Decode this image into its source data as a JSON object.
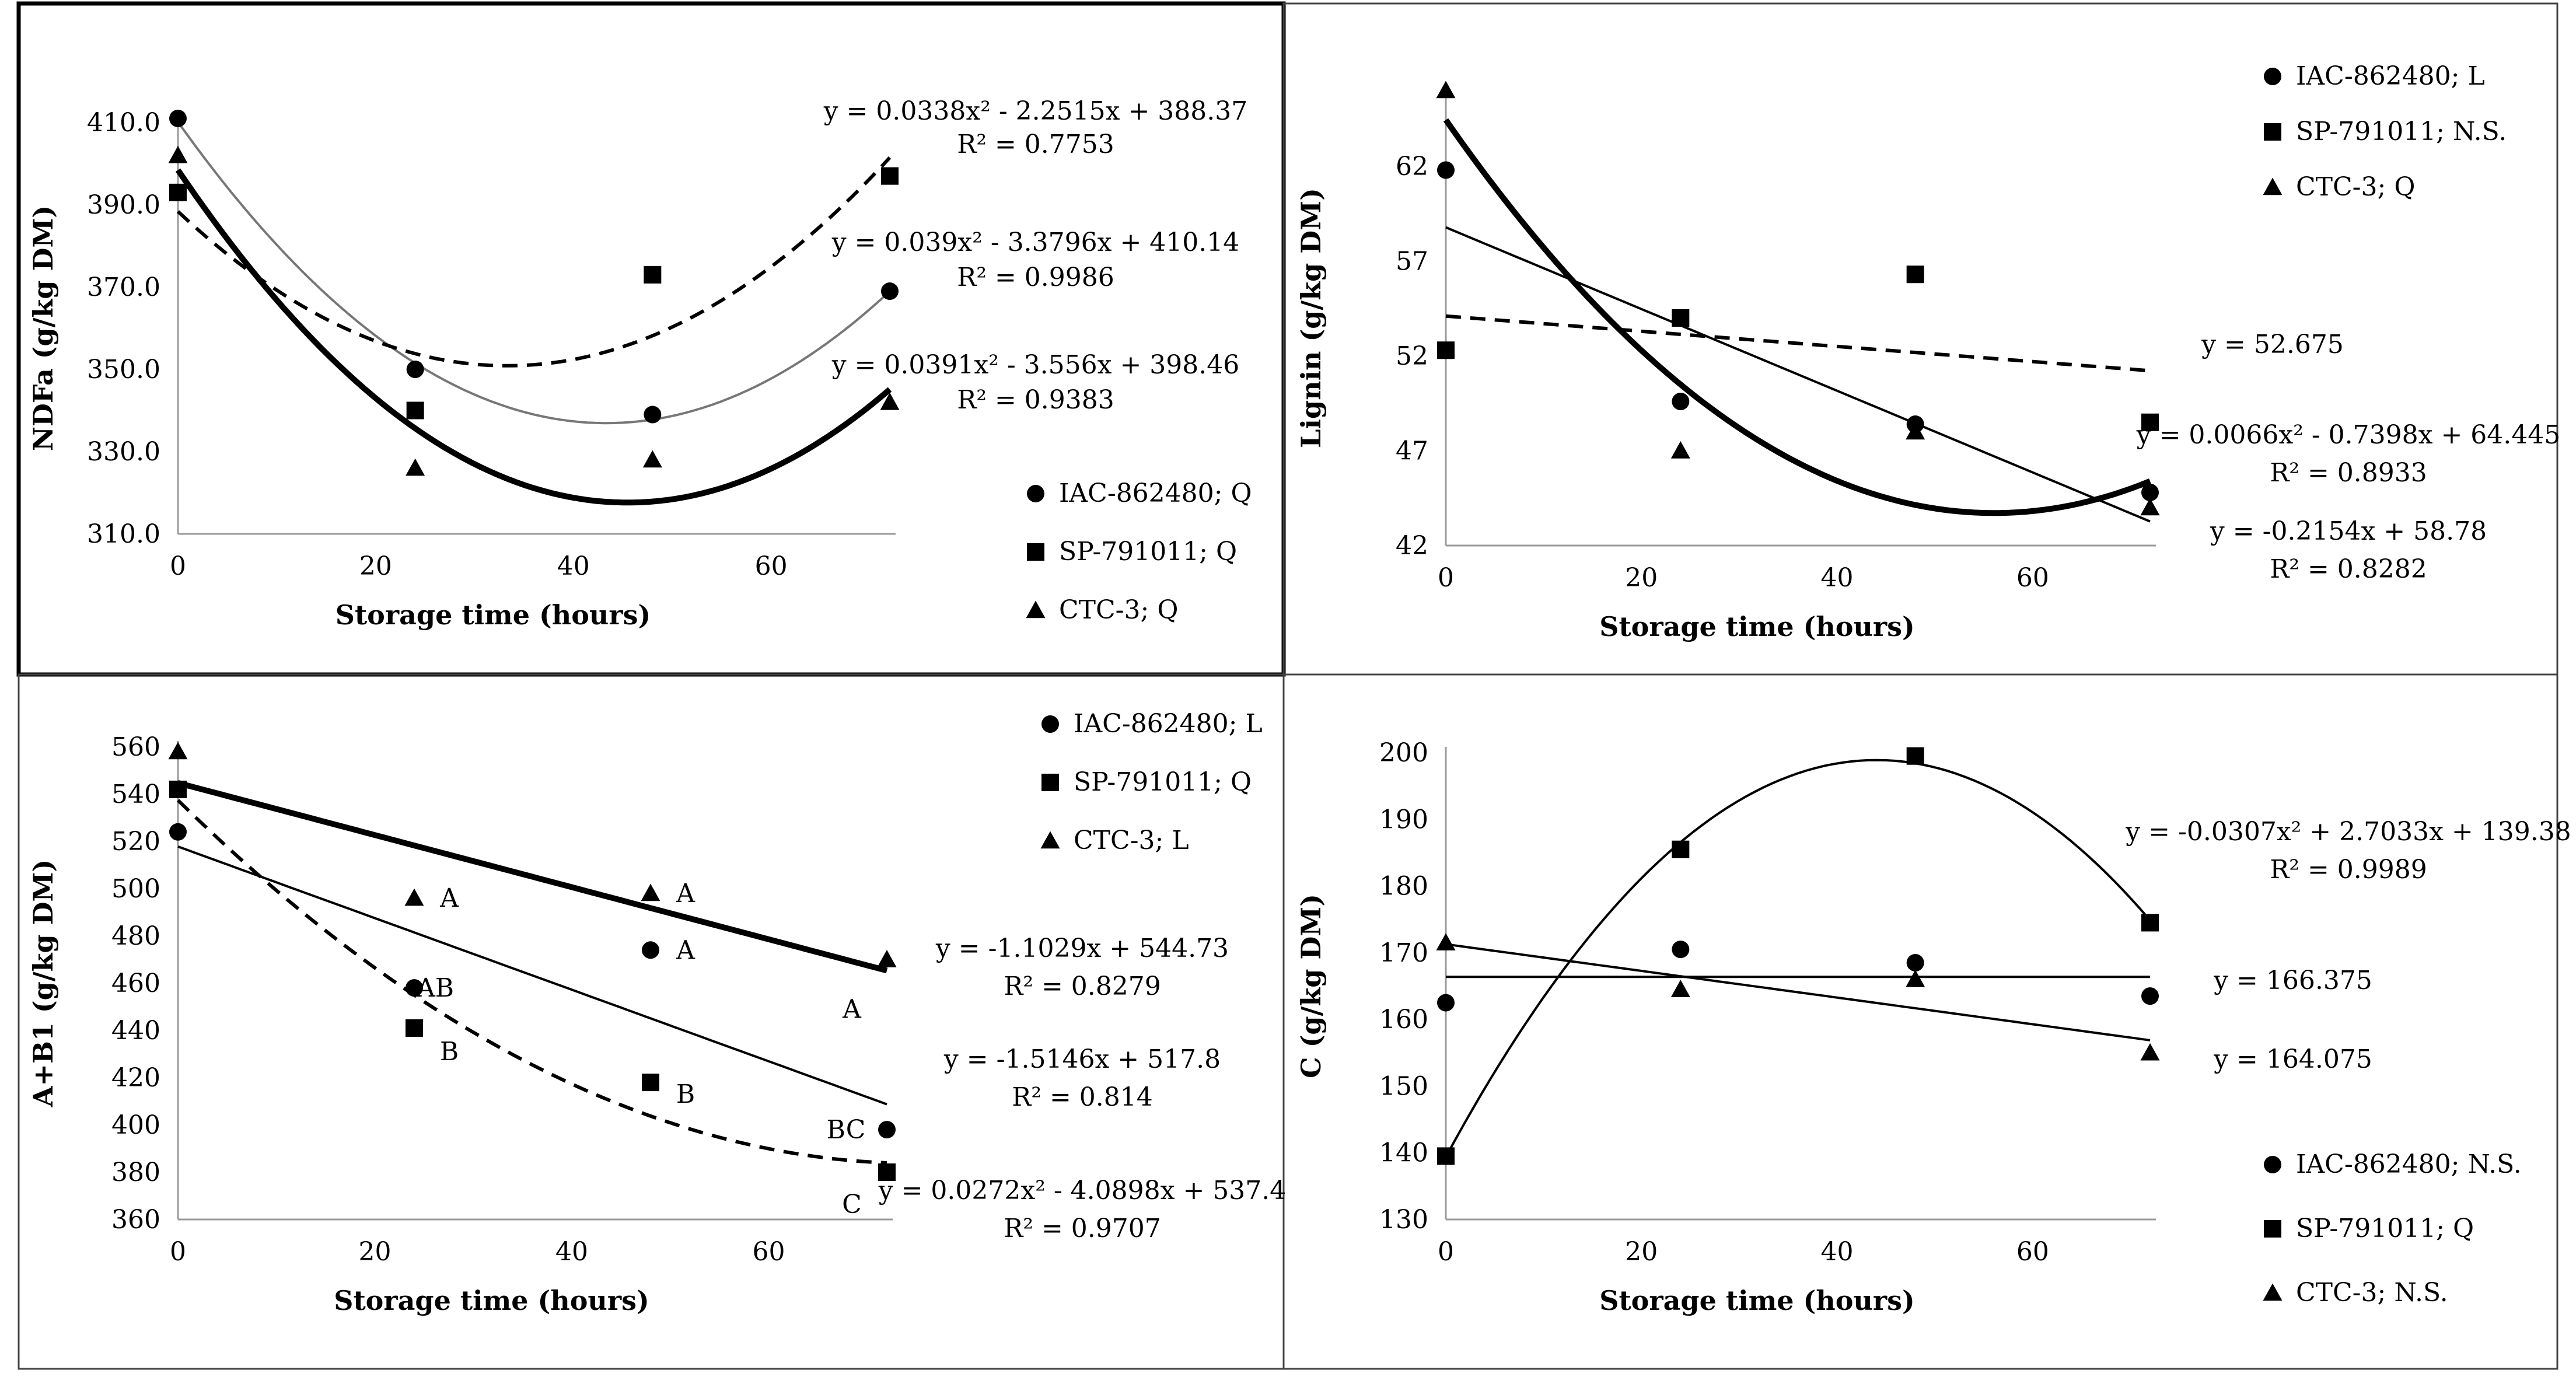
{
  "chart_data": [
    {
      "id": "ndfa",
      "type": "scatter",
      "xlabel": "Storage time (hours)",
      "ylabel": "NDFa (g/kg DM)",
      "xlim": [
        0,
        72
      ],
      "ylim": [
        310,
        410
      ],
      "xticks": [
        0,
        20,
        40,
        60
      ],
      "yticks": [
        310.0,
        330.0,
        350.0,
        370.0,
        390.0,
        410.0
      ],
      "ytick_labels": [
        "310.0",
        "330.0",
        "350.0",
        "370.0",
        "390.0",
        "410.0"
      ],
      "x": [
        0,
        24,
        48,
        72
      ],
      "series": [
        {
          "name": "IAC-862480; Q",
          "marker": "circle",
          "values": [
            411,
            350,
            339,
            369
          ],
          "fit": {
            "kind": "quad",
            "a": 0.039,
            "b": -3.3796,
            "c": 410.14,
            "style": "thin",
            "color": "#777777"
          }
        },
        {
          "name": "SP-791011; Q",
          "marker": "square",
          "values": [
            393,
            340,
            373,
            397
          ],
          "fit": {
            "kind": "quad",
            "a": 0.0338,
            "b": -2.2515,
            "c": 388.37,
            "style": "dashed",
            "color": "#000000"
          }
        },
        {
          "name": "CTC-3; Q",
          "marker": "triangle",
          "values": [
            402,
            326,
            328,
            342
          ],
          "fit": {
            "kind": "quad",
            "a": 0.0391,
            "b": -3.556,
            "c": 398.46,
            "style": "thick",
            "color": "#000000"
          }
        }
      ],
      "equations": [
        {
          "eq": "y = 0.0338x² - 2.2515x + 388.37",
          "r2": "R² = 0.7753"
        },
        {
          "eq": "y = 0.039x² - 3.3796x + 410.14",
          "r2": "R² = 0.9986"
        },
        {
          "eq": "y = 0.0391x² - 3.556x + 398.46",
          "r2": "R² = 0.9383"
        }
      ],
      "legend_position": "bottom-right"
    },
    {
      "id": "lignin",
      "type": "scatter",
      "xlabel": "Storage time (hours)",
      "ylabel": "Lignin (g/kg DM)",
      "xlim": [
        0,
        72
      ],
      "ylim": [
        42,
        66
      ],
      "xticks": [
        0,
        20,
        40,
        60
      ],
      "yticks": [
        42,
        47,
        52,
        57,
        62
      ],
      "ytick_labels": [
        "42",
        "47",
        "52",
        "57",
        "62"
      ],
      "x": [
        0,
        24,
        48,
        72
      ],
      "series": [
        {
          "name": "IAC-862480; L",
          "marker": "circle",
          "values": [
            61.8,
            49.6,
            48.4,
            44.8
          ],
          "fit": {
            "kind": "linear",
            "b": -0.2154,
            "c": 58.78,
            "style": "thin",
            "color": "#000000"
          }
        },
        {
          "name": "SP-791011; N.S.",
          "marker": "square",
          "values": [
            52.3,
            54.0,
            56.3,
            48.5
          ],
          "fit": {
            "kind": "linear",
            "b": -0.04,
            "c": 54.1,
            "style": "dashed",
            "color": "#000000"
          }
        },
        {
          "name": "CTC-3; Q",
          "marker": "triangle",
          "values": [
            66.0,
            47.0,
            48.0,
            44.0
          ],
          "fit": {
            "kind": "quad",
            "a": 0.0066,
            "b": -0.7398,
            "c": 64.445,
            "style": "thick",
            "color": "#000000"
          }
        }
      ],
      "equations": [
        {
          "eq": "y = 52.675",
          "r2": ""
        },
        {
          "eq": "y = 0.0066x² - 0.7398x + 64.445",
          "r2": "R² = 0.8933"
        },
        {
          "eq": "y = -0.2154x + 58.78",
          "r2": "R² = 0.8282"
        }
      ],
      "legend_position": "top-right"
    },
    {
      "id": "ab1",
      "type": "scatter",
      "xlabel": "Storage time (hours)",
      "ylabel": "A+B1 (g/kg DM)",
      "xlim": [
        0,
        72
      ],
      "ylim": [
        360,
        560
      ],
      "xticks": [
        0,
        20,
        40,
        60
      ],
      "yticks": [
        360,
        380,
        400,
        420,
        440,
        460,
        480,
        500,
        520,
        540,
        560
      ],
      "ytick_labels": [
        "360",
        "380",
        "400",
        "420",
        "440",
        "460",
        "480",
        "500",
        "520",
        "540",
        "560"
      ],
      "x": [
        0,
        24,
        48,
        72
      ],
      "series": [
        {
          "name": "IAC-862480; L",
          "marker": "circle",
          "values": [
            524,
            458,
            474,
            398
          ],
          "fit": {
            "kind": "linear",
            "b": -1.5146,
            "c": 517.8,
            "style": "thin",
            "color": "#000000"
          }
        },
        {
          "name": "SP-791011; Q",
          "marker": "square",
          "values": [
            542,
            441,
            418,
            380
          ],
          "fit": {
            "kind": "quad",
            "a": 0.0272,
            "b": -4.0898,
            "c": 537.4,
            "style": "dashed",
            "color": "#000000"
          }
        },
        {
          "name": "CTC-3; L",
          "marker": "triangle",
          "values": [
            558,
            496,
            498,
            470
          ],
          "fit": {
            "kind": "linear",
            "b": -1.1029,
            "c": 544.73,
            "style": "thick",
            "color": "#000000"
          }
        }
      ],
      "equations": [
        {
          "eq": "y = -1.1029x + 544.73",
          "r2": "R² = 0.8279"
        },
        {
          "eq": "y = -1.5146x + 517.8",
          "r2": "R² = 0.814"
        },
        {
          "eq": "y = 0.0272x² - 4.0898x + 537.4",
          "r2": "R² = 0.9707"
        }
      ],
      "annotations": [
        {
          "text": "A",
          "x": 24,
          "y": 496
        },
        {
          "text": "A",
          "x": 48,
          "y": 498
        },
        {
          "text": "AB",
          "x": 24,
          "y": 458
        },
        {
          "text": "A",
          "x": 48,
          "y": 474
        },
        {
          "text": "A",
          "x": 72,
          "y": 470
        },
        {
          "text": "B",
          "x": 24,
          "y": 441
        },
        {
          "text": "B",
          "x": 48,
          "y": 418
        },
        {
          "text": "BC",
          "x": 72,
          "y": 398
        },
        {
          "text": "C",
          "x": 72,
          "y": 380
        }
      ],
      "legend_position": "top-right"
    },
    {
      "id": "c",
      "type": "scatter",
      "xlabel": "Storage time (hours)",
      "ylabel": "C (g/kg DM)",
      "xlim": [
        0,
        72
      ],
      "ylim": [
        130,
        200
      ],
      "xticks": [
        0,
        20,
        40,
        60
      ],
      "yticks": [
        130,
        140,
        150,
        160,
        170,
        180,
        190,
        200
      ],
      "ytick_labels": [
        "130",
        "140",
        "150",
        "160",
        "170",
        "180",
        "190",
        "200"
      ],
      "x": [
        0,
        24,
        48,
        72
      ],
      "series": [
        {
          "name": "IAC-862480; N.S.",
          "marker": "circle",
          "values": [
            162.5,
            170.5,
            168.5,
            163.5
          ],
          "fit": {
            "kind": "linear",
            "b": 0,
            "c": 166.375,
            "style": "thin",
            "color": "#000000"
          }
        },
        {
          "name": "SP-791011; Q",
          "marker": "square",
          "values": [
            139.5,
            185.5,
            199.5,
            174.5
          ],
          "fit": {
            "kind": "quad",
            "a": -0.0307,
            "b": 2.7033,
            "c": 139.38,
            "style": "thin",
            "color": "#000000"
          }
        },
        {
          "name": "CTC-3; N.S.",
          "marker": "triangle",
          "values": [
            171.5,
            164.5,
            166.0,
            155.0
          ],
          "fit": {
            "kind": "linear",
            "b": -0.2,
            "c": 171.275,
            "style": "thin",
            "color": "#000000"
          }
        }
      ],
      "equations": [
        {
          "eq": "y = -0.0307x² + 2.7033x + 139.38",
          "r2": "R² = 0.9989"
        },
        {
          "eq": "y = 166.375",
          "r2": ""
        },
        {
          "eq": "y = 164.075",
          "r2": ""
        }
      ],
      "legend_position": "bottom-right"
    }
  ]
}
